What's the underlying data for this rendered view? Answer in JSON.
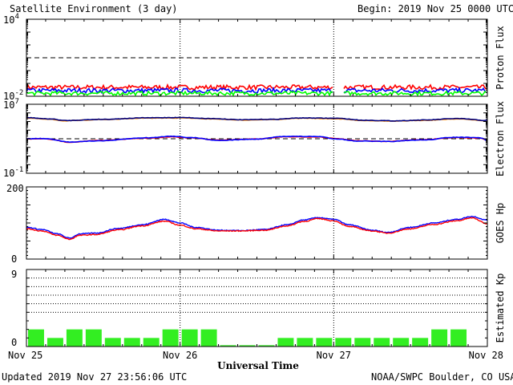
{
  "header": {
    "title": "Satellite Environment (3 day)",
    "begin": "Begin:  2019 Nov 25 0000 UTC"
  },
  "footer": {
    "updated": "Updated 2019 Nov 27 23:56:06 UTC",
    "credit": "NOAA/SWPC Boulder, CO USA"
  },
  "xaxis": {
    "label": "Universal Time",
    "ticks": [
      "Nov 25",
      "Nov 26",
      "Nov 27",
      "Nov 28"
    ]
  },
  "colors": {
    "red": "#ff0000",
    "blue": "#0000ff",
    "green": "#00ff00",
    "orange": "#ff8c00",
    "navy": "#000080",
    "kp_bar": "#33ee22"
  },
  "chart_data": [
    {
      "type": "line",
      "ylabel": "Proton Flux",
      "yscale": "log",
      "ylim": [
        0.01,
        10000
      ],
      "ytick_labels": [
        {
          "base": "10",
          "exp": "4"
        },
        {
          "base": "10",
          "exp": "-2"
        }
      ],
      "threshold": 10,
      "x_range_days": [
        0,
        3
      ],
      "series": [
        {
          "color": "#ff0000",
          "level": 0.05,
          "noise": 0.35
        },
        {
          "color": "#0000ff",
          "level": 0.028,
          "noise": 0.35
        },
        {
          "color": "#00ff00",
          "level": 0.017,
          "noise": 0.3
        }
      ],
      "data_gap_days": [
        2.0,
        2.06
      ]
    },
    {
      "type": "line",
      "ylabel": "Electron Flux",
      "yscale": "log",
      "ylim": [
        0.1,
        10000000
      ],
      "ytick_labels": [
        {
          "base": "10",
          "exp": "7"
        },
        {
          "base": "10",
          "exp": "-1"
        }
      ],
      "threshold": 1000,
      "series": [
        {
          "color": "#ff8c00",
          "x": [
            0,
            0.15,
            0.25,
            0.5,
            0.8,
            1.0,
            1.2,
            1.4,
            1.6,
            1.8,
            2.0,
            2.2,
            2.4,
            2.6,
            2.8,
            3.0
          ],
          "y": [
            250000,
            180000,
            120000,
            170000,
            250000,
            260000,
            200000,
            150000,
            170000,
            240000,
            210000,
            130000,
            110000,
            140000,
            200000,
            120000
          ]
        },
        {
          "color": "#000080",
          "x": [
            0,
            0.15,
            0.25,
            0.5,
            0.8,
            1.0,
            1.2,
            1.4,
            1.6,
            1.8,
            2.0,
            2.2,
            2.4,
            2.6,
            2.8,
            3.0
          ],
          "y": [
            280000,
            200000,
            130000,
            180000,
            270000,
            290000,
            220000,
            160000,
            180000,
            260000,
            240000,
            140000,
            120000,
            150000,
            220000,
            130000
          ]
        },
        {
          "color": "#ff0000",
          "x": [
            0,
            0.1,
            0.28,
            0.5,
            0.8,
            0.95,
            1.05,
            1.25,
            1.5,
            1.7,
            1.9,
            2.0,
            2.15,
            2.35,
            2.6,
            2.8,
            2.95,
            3.0
          ],
          "y": [
            950,
            1000,
            400,
            650,
            1200,
            1700,
            1300,
            700,
            950,
            1700,
            1600,
            1100,
            600,
            500,
            800,
            1400,
            1200,
            700
          ]
        },
        {
          "color": "#0000ff",
          "x": [
            0,
            0.1,
            0.28,
            0.5,
            0.8,
            0.95,
            1.05,
            1.25,
            1.5,
            1.7,
            1.9,
            2.0,
            2.15,
            2.35,
            2.6,
            2.8,
            2.95,
            3.0
          ],
          "y": [
            1000,
            1050,
            420,
            600,
            1300,
            2000,
            1400,
            650,
            900,
            1900,
            1800,
            1000,
            550,
            480,
            750,
            1500,
            1300,
            650
          ]
        }
      ]
    },
    {
      "type": "line",
      "ylabel": "GOES Hp",
      "ylim": [
        0,
        200
      ],
      "ytick_labels": [
        "200",
        "0"
      ],
      "series": [
        {
          "color": "#0000ff",
          "x": [
            0,
            0.1,
            0.2,
            0.28,
            0.35,
            0.45,
            0.6,
            0.75,
            0.9,
            1.0,
            1.1,
            1.25,
            1.4,
            1.55,
            1.7,
            1.8,
            1.9,
            2.0,
            2.1,
            2.25,
            2.35,
            2.5,
            2.65,
            2.8,
            2.9,
            3.0
          ],
          "y": [
            88,
            82,
            70,
            58,
            70,
            72,
            85,
            95,
            110,
            100,
            88,
            80,
            79,
            82,
            95,
            108,
            115,
            110,
            95,
            80,
            74,
            88,
            100,
            110,
            118,
            108
          ]
        },
        {
          "color": "#ff0000",
          "x": [
            0,
            0.1,
            0.2,
            0.28,
            0.35,
            0.45,
            0.6,
            0.75,
            0.9,
            1.0,
            1.1,
            1.25,
            1.4,
            1.55,
            1.7,
            1.8,
            1.9,
            2.0,
            2.1,
            2.25,
            2.35,
            2.5,
            2.65,
            2.8,
            2.9,
            3.0
          ],
          "y": [
            84,
            78,
            66,
            55,
            66,
            68,
            81,
            92,
            105,
            94,
            84,
            78,
            78,
            80,
            92,
            104,
            112,
            106,
            90,
            78,
            72,
            84,
            96,
            106,
            114,
            98
          ]
        }
      ]
    },
    {
      "type": "bar",
      "ylabel": "Estimated Kp",
      "ylim": [
        0,
        9
      ],
      "ytick_labels": [
        "9",
        "0"
      ],
      "gridlines": [
        4,
        5,
        6,
        7,
        8,
        9
      ],
      "bar_hours": 3,
      "values": [
        2,
        1,
        2,
        2,
        1,
        1,
        1,
        2,
        2,
        2,
        0.15,
        0.15,
        0.15,
        1,
        1,
        1,
        1,
        1,
        1,
        1,
        1,
        2,
        2
      ]
    }
  ]
}
